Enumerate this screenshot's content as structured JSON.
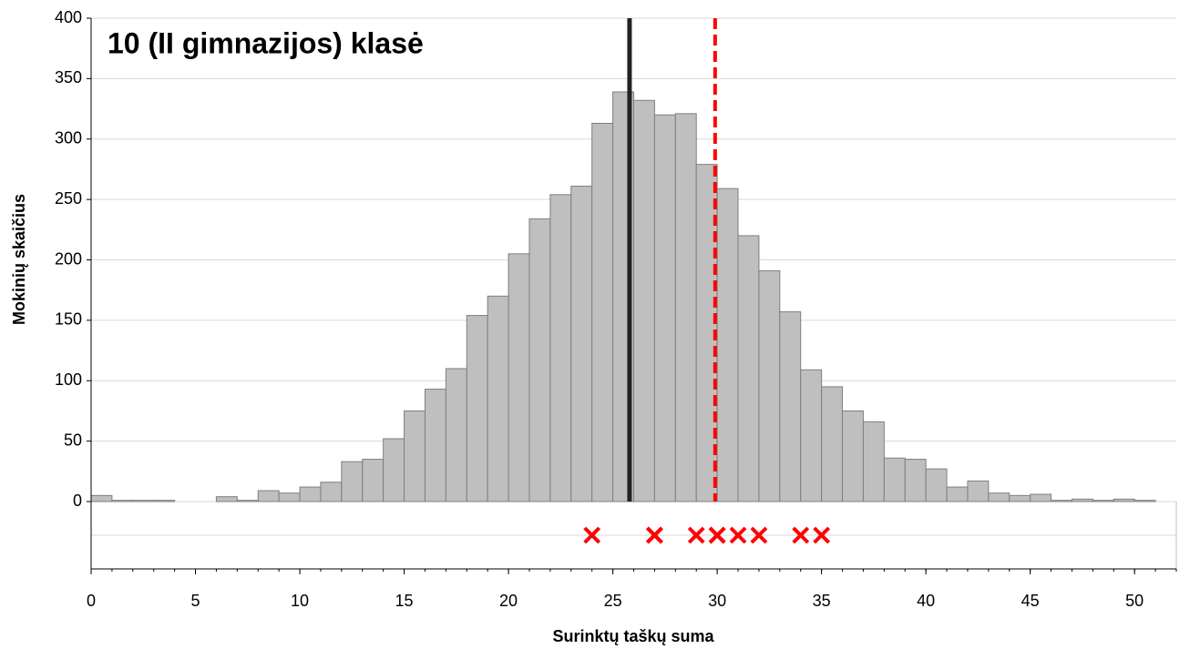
{
  "chart_data": {
    "type": "histogram",
    "title": "10 (II gimnazijos) klasė",
    "x_label": "Surinktų taškų suma",
    "y_label": "Mokinių skaičius",
    "bins": [
      0,
      1,
      2,
      3,
      4,
      5,
      6,
      7,
      8,
      9,
      10,
      11,
      12,
      13,
      14,
      15,
      16,
      17,
      18,
      19,
      20,
      21,
      22,
      23,
      24,
      25,
      26,
      27,
      28,
      29,
      30,
      31,
      32,
      33,
      34,
      35,
      36,
      37,
      38,
      39,
      40,
      41,
      42,
      43,
      44,
      45,
      46,
      47,
      48,
      49,
      50,
      51,
      52
    ],
    "values": [
      5,
      1,
      1,
      1,
      0,
      0,
      4,
      1,
      9,
      7,
      12,
      16,
      33,
      35,
      52,
      75,
      93,
      110,
      154,
      170,
      205,
      234,
      254,
      261,
      313,
      339,
      332,
      320,
      321,
      279,
      259,
      220,
      191,
      157,
      109,
      95,
      75,
      66,
      36,
      35,
      27,
      12,
      17,
      7,
      5,
      6,
      1,
      2,
      1,
      2,
      1,
      0
    ],
    "color": "#bfbfbf",
    "xlim": [
      0,
      52
    ],
    "xticks": [
      0,
      5,
      10,
      15,
      20,
      25,
      30,
      35,
      40,
      45,
      50
    ],
    "ylim": [
      0,
      400
    ],
    "yticks": [
      0,
      50,
      100,
      150,
      200,
      250,
      300,
      350,
      400
    ],
    "grid": true,
    "mean_line": {
      "x": 25.8,
      "color": "#222222"
    },
    "reference_line": {
      "x": 29.9,
      "color": "#ff0000",
      "dashed": true
    },
    "markers": {
      "x": [
        24,
        27,
        27,
        27,
        29,
        30,
        30,
        30,
        31,
        32,
        34,
        35
      ],
      "color": "#ff0000"
    }
  }
}
